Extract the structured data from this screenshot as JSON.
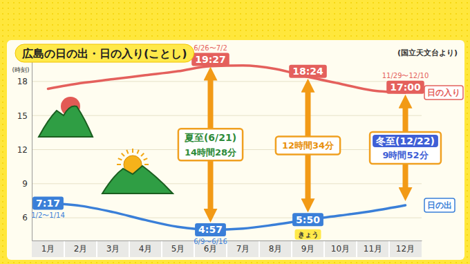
{
  "chart_data": {
    "type": "line",
    "title": "広島の日の出・日の入り(ことし)",
    "source": "(国立天文台より)",
    "y_label": "(時刻)",
    "categories": [
      "1月",
      "2月",
      "3月",
      "4月",
      "5月",
      "6月",
      "7月",
      "8月",
      "9月",
      "10月",
      "11月",
      "12月"
    ],
    "series": [
      {
        "name": "日の入り",
        "color": "#e4605c",
        "values": [
          17.35,
          17.85,
          18.2,
          18.55,
          18.9,
          19.35,
          19.4,
          19.1,
          18.4,
          17.8,
          17.2,
          17.02
        ]
      },
      {
        "name": "日の出",
        "color": "#3a7fd8",
        "values": [
          7.28,
          7.05,
          6.5,
          5.8,
          5.2,
          4.95,
          5.05,
          5.4,
          5.83,
          6.2,
          6.6,
          7.1
        ]
      }
    ],
    "ylim": [
      4,
      20
    ],
    "yticks": [
      6,
      9,
      12,
      15,
      18
    ],
    "grid": true,
    "annotations": [
      {
        "series": "日の入り",
        "category": "6月",
        "value": 19.45,
        "label": "19:27",
        "note": "6/26〜7/2"
      },
      {
        "series": "日の入り",
        "category": "9月",
        "value": 18.4,
        "label": "18:24"
      },
      {
        "series": "日の入り",
        "category": "12月",
        "value": 17.0,
        "label": "17:00",
        "note": "11/29〜12/10"
      },
      {
        "series": "日の出",
        "category": "1月",
        "value": 7.2833,
        "label": "7:17",
        "note": "1/2〜1/14"
      },
      {
        "series": "日の出",
        "category": "6月",
        "value": 4.95,
        "label": "4:57",
        "note": "6/9〜6/16"
      },
      {
        "series": "日の出",
        "category": "9月",
        "value": 5.8333,
        "label": "5:50",
        "tag": "きょう"
      }
    ],
    "spans": [
      {
        "category": "6月",
        "title": "夏至(6/21)",
        "label": "14時間28分"
      },
      {
        "category": "9月",
        "label": "12時間34分"
      },
      {
        "category": "12月",
        "title": "冬至(12/22)",
        "label": "9時間52分"
      }
    ]
  }
}
